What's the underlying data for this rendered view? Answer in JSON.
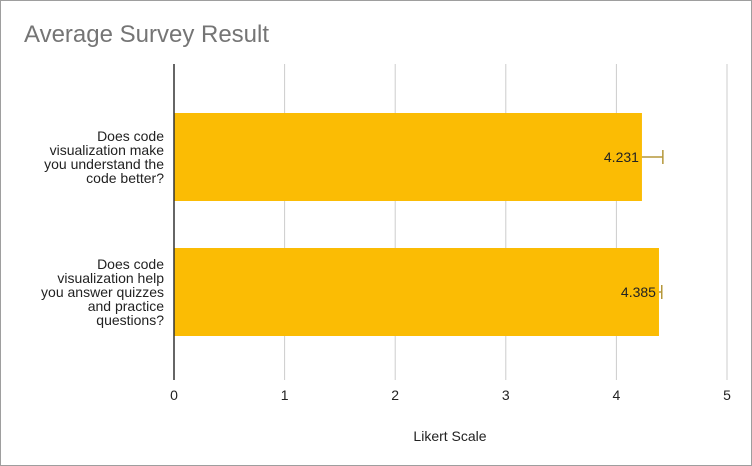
{
  "chart_data": {
    "type": "bar",
    "orientation": "horizontal",
    "title": "Average Survey Result",
    "xlabel": "Likert Scale",
    "ylabel": "",
    "xlim": [
      0,
      5
    ],
    "xticks": [
      "0",
      "1",
      "2",
      "3",
      "4",
      "5"
    ],
    "grid": true,
    "legend": "none",
    "bar_color": "#fbbc04",
    "errorbar_color": "#b5973a",
    "categories": [
      [
        "Does code",
        "visualization make",
        "you understand the",
        "code better?"
      ],
      [
        "Does code",
        "visualization help",
        "you answer quizzes",
        "and practice",
        "questions?"
      ]
    ],
    "values": [
      4.231,
      4.385
    ],
    "value_labels": [
      "4.231",
      "4.385"
    ],
    "error_upper": [
      4.42,
      4.41
    ],
    "error_lower": [
      4.231,
      4.385
    ]
  }
}
